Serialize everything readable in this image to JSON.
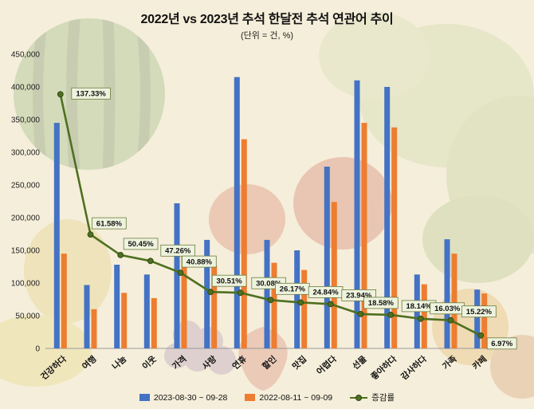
{
  "page": {
    "title": "2022년 vs 2023년 추석 한달전 추석 연관어 추이",
    "subtitle": "(단위 = 건, %)"
  },
  "legend": {
    "series1_label": "2023-08-30 ~ 09-28",
    "series2_label": "2022-08-11 ~ 09-09",
    "line_label": "증감률"
  },
  "colors": {
    "series1": "#4472c4",
    "series2": "#ed7d31",
    "line": "#4e7020",
    "background": "#f5eeda",
    "pct_box_bg": "#eef3de",
    "pct_box_border": "#6b7c3e"
  },
  "chart_data": {
    "type": "bar",
    "subtype": "grouped-bars-with-line",
    "title": "2022년 vs 2023년 추석 한달전 추석 연관어 추이",
    "unit_note": "(단위 = 건, %)",
    "categories": [
      "건강하다",
      "여행",
      "나눔",
      "이웃",
      "가격",
      "사랑",
      "연휴",
      "할인",
      "맛집",
      "어렵다",
      "선물",
      "좋아하다",
      "감사하다",
      "가족",
      "카페"
    ],
    "series": [
      {
        "name": "2023-08-30 ~ 09-28",
        "color": "#4472c4",
        "values": [
          345000,
          97000,
          128000,
          113000,
          222000,
          166000,
          415000,
          166000,
          150000,
          278000,
          410000,
          400000,
          113000,
          167000,
          90000
        ]
      },
      {
        "name": "2022-08-11 ~ 09-09",
        "color": "#ed7d31",
        "values": [
          145000,
          60000,
          85000,
          77000,
          158000,
          127000,
          320000,
          131000,
          120000,
          224000,
          345000,
          338000,
          98000,
          145000,
          84000
        ]
      }
    ],
    "line_series": {
      "name": "증감률",
      "color": "#4e7020",
      "values_pct": [
        137.33,
        61.58,
        50.45,
        47.26,
        40.88,
        30.51,
        30.08,
        26.17,
        24.84,
        23.94,
        18.58,
        18.14,
        16.03,
        15.22,
        6.97
      ]
    },
    "y_axis": {
      "min": 0,
      "max": 450000,
      "step": 50000,
      "tick_labels": [
        "0",
        "50,000",
        "100,000",
        "150,000",
        "200,000",
        "250,000",
        "300,000",
        "350,000",
        "400,000",
        "450,000"
      ]
    },
    "xlabel": "",
    "ylabel": "",
    "grid": false,
    "legend_position": "bottom"
  }
}
